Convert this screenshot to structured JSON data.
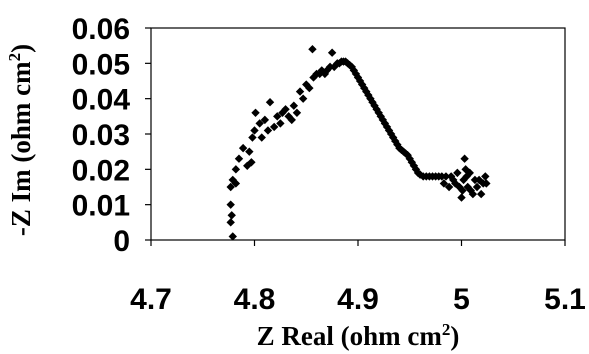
{
  "chart_data": {
    "type": "scatter",
    "title": "",
    "xlabel": {
      "main": "Z Real (ohm cm",
      "sup": "2",
      "end": ")"
    },
    "ylabel": {
      "main": "-Z Im (ohm cm",
      "sup": "2",
      "end": ")"
    },
    "xlim": [
      4.7,
      5.1
    ],
    "ylim": [
      0,
      0.06
    ],
    "xticks": [
      "4.7",
      "4.8",
      "4.9",
      "5",
      "5.1"
    ],
    "yticks": [
      "0",
      "0.01",
      "0.02",
      "0.03",
      "0.04",
      "0.05",
      "0.06"
    ],
    "grid": false,
    "marker": "diamond",
    "marker_color": "#000000",
    "series": [
      {
        "points": [
          [
            4.779,
            0.001
          ],
          [
            4.777,
            0.005
          ],
          [
            4.778,
            0.007
          ],
          [
            4.777,
            0.01
          ],
          [
            4.777,
            0.015
          ],
          [
            4.779,
            0.017
          ],
          [
            4.782,
            0.016
          ],
          [
            4.782,
            0.02
          ],
          [
            4.785,
            0.023
          ],
          [
            4.789,
            0.026
          ],
          [
            4.793,
            0.021
          ],
          [
            4.795,
            0.025
          ],
          [
            4.797,
            0.022
          ],
          [
            4.798,
            0.029
          ],
          [
            4.8,
            0.031
          ],
          [
            4.801,
            0.036
          ],
          [
            4.805,
            0.033
          ],
          [
            4.807,
            0.029
          ],
          [
            4.81,
            0.034
          ],
          [
            4.813,
            0.031
          ],
          [
            4.815,
            0.039
          ],
          [
            4.819,
            0.032
          ],
          [
            4.822,
            0.035
          ],
          [
            4.825,
            0.033
          ],
          [
            4.827,
            0.036
          ],
          [
            4.83,
            0.037
          ],
          [
            4.833,
            0.035
          ],
          [
            4.836,
            0.034
          ],
          [
            4.838,
            0.038
          ],
          [
            4.841,
            0.036
          ],
          [
            4.844,
            0.042
          ],
          [
            4.847,
            0.04
          ],
          [
            4.85,
            0.044
          ],
          [
            4.853,
            0.043
          ],
          [
            4.856,
            0.054
          ],
          [
            4.857,
            0.046
          ],
          [
            4.86,
            0.047
          ],
          [
            4.863,
            0.047
          ],
          [
            4.865,
            0.048
          ],
          [
            4.868,
            0.047
          ],
          [
            4.87,
            0.048
          ],
          [
            4.873,
            0.049
          ],
          [
            4.875,
            0.053
          ],
          [
            4.877,
            0.049
          ],
          [
            4.88,
            0.05
          ],
          [
            4.882,
            0.05
          ],
          [
            4.884,
            0.0505
          ],
          [
            4.886,
            0.0505
          ],
          [
            4.888,
            0.0505
          ],
          [
            4.89,
            0.05
          ],
          [
            4.892,
            0.0495
          ],
          [
            4.894,
            0.049
          ],
          [
            4.896,
            0.048
          ],
          [
            4.898,
            0.047
          ],
          [
            4.9,
            0.046
          ],
          [
            4.902,
            0.045
          ],
          [
            4.904,
            0.044
          ],
          [
            4.906,
            0.043
          ],
          [
            4.908,
            0.042
          ],
          [
            4.91,
            0.041
          ],
          [
            4.912,
            0.04
          ],
          [
            4.914,
            0.039
          ],
          [
            4.916,
            0.038
          ],
          [
            4.918,
            0.037
          ],
          [
            4.92,
            0.036
          ],
          [
            4.922,
            0.035
          ],
          [
            4.924,
            0.034
          ],
          [
            4.926,
            0.033
          ],
          [
            4.928,
            0.032
          ],
          [
            4.93,
            0.031
          ],
          [
            4.932,
            0.03
          ],
          [
            4.934,
            0.029
          ],
          [
            4.936,
            0.028
          ],
          [
            4.938,
            0.027
          ],
          [
            4.94,
            0.026
          ],
          [
            4.942,
            0.0255
          ],
          [
            4.944,
            0.025
          ],
          [
            4.946,
            0.0245
          ],
          [
            4.948,
            0.024
          ],
          [
            4.95,
            0.023
          ],
          [
            4.952,
            0.022
          ],
          [
            4.954,
            0.021
          ],
          [
            4.956,
            0.02
          ],
          [
            4.958,
            0.019
          ],
          [
            4.96,
            0.0185
          ],
          [
            4.963,
            0.018
          ],
          [
            4.966,
            0.018
          ],
          [
            4.969,
            0.018
          ],
          [
            4.972,
            0.018
          ],
          [
            4.975,
            0.018
          ],
          [
            4.978,
            0.018
          ],
          [
            4.981,
            0.018
          ],
          [
            4.983,
            0.016
          ],
          [
            4.985,
            0.018
          ],
          [
            4.988,
            0.015
          ],
          [
            4.99,
            0.018
          ],
          [
            4.992,
            0.017
          ],
          [
            4.994,
            0.016
          ],
          [
            4.996,
            0.019
          ],
          [
            4.998,
            0.015
          ],
          [
            5.0,
            0.012
          ],
          [
            5.001,
            0.014
          ],
          [
            5.002,
            0.017
          ],
          [
            5.003,
            0.023
          ],
          [
            5.004,
            0.02
          ],
          [
            5.005,
            0.018
          ],
          [
            5.006,
            0.015
          ],
          [
            5.008,
            0.019
          ],
          [
            5.009,
            0.014
          ],
          [
            5.011,
            0.013
          ],
          [
            5.013,
            0.017
          ],
          [
            5.015,
            0.015
          ],
          [
            5.017,
            0.017
          ],
          [
            5.019,
            0.013
          ],
          [
            5.021,
            0.016
          ],
          [
            5.023,
            0.018
          ],
          [
            5.024,
            0.016
          ]
        ]
      }
    ]
  }
}
